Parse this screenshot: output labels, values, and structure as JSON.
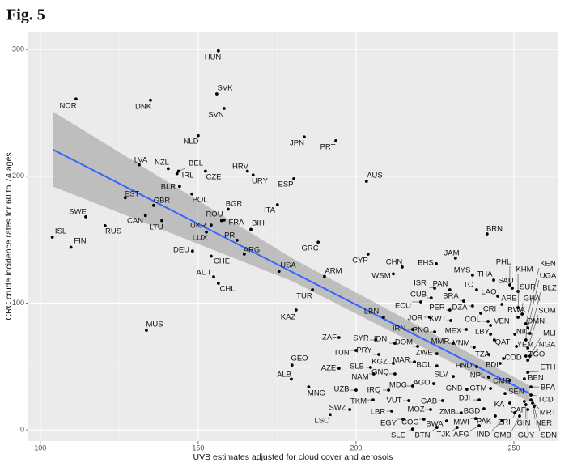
{
  "chart_data": {
    "type": "scatter",
    "title": "Fig. 5",
    "xlabel": "UVB estimates adjusted for cloud cover and aerosols",
    "ylabel": "CRC crude incidence rates for 60 to 74 ages",
    "xlim": [
      96.2,
      264.1
    ],
    "ylim": [
      -8.9,
      313.5
    ],
    "xticks": [
      100,
      150,
      200,
      250
    ],
    "yticks": [
      0,
      100,
      200,
      300
    ],
    "grid": true,
    "series": [
      {
        "color": "#000000",
        "labels": [
          "HUN",
          "SVK",
          "SVN",
          "NOR",
          "DNK",
          "NLD",
          "JPN",
          "PRT",
          "LVA",
          "NZL",
          "BEL",
          "IRL",
          "CZE",
          "HRV",
          "URY",
          "ESP",
          "AUS",
          "BLR",
          "EST",
          "POL",
          "GBR",
          "SWE",
          "CAN",
          "LTU",
          "BGR",
          "ITA",
          "ROU",
          "FRA",
          "UKR",
          "BIH",
          "RUS",
          "ISL",
          "FIN",
          "LUX",
          "PRI",
          "DEU",
          "ARG",
          "GRC",
          "CHE",
          "CYP",
          "USA",
          "ARM",
          "AUT",
          "CHL",
          "TUR",
          "BRN",
          "JAM",
          "MUS",
          "KAZ",
          "LBN",
          "CHN",
          "WSM",
          "BHS",
          "ZAF",
          "GEO",
          "ALB",
          "AZE",
          "MNG",
          "SWZ",
          "LSO",
          "ISR",
          "PAN",
          "CUB",
          "TTO",
          "MYS",
          "THA",
          "PHL",
          "KHM",
          "KEN",
          "SAU",
          "UGA",
          "BLZ",
          "SUR",
          "LAO",
          "BRA",
          "ARE",
          "GHA",
          "ECU",
          "PER",
          "DZA",
          "CRI",
          "RWA",
          "SOM",
          "JOR",
          "KWT",
          "COL",
          "VEN",
          "OMN",
          "IRN",
          "PNG",
          "MEX",
          "LBY",
          "NIC",
          "MLI",
          "QAT",
          "YEM",
          "NGA",
          "SYR",
          "IDN",
          "MMR",
          "VNM",
          "TGO",
          "DOM",
          "COD",
          "TUN",
          "PRY",
          "ZWE",
          "TZA",
          "BDI",
          "ETH",
          "SLB",
          "KGZ",
          "MAR",
          "BOL",
          "HND",
          "BEN",
          "NAM",
          "GNQ",
          "SLV",
          "NPL",
          "CMR",
          "BFA",
          "AGO",
          "UZB",
          "IRQ",
          "MDG",
          "GNB",
          "GTM",
          "SEN",
          "TCD",
          "DJI",
          "GAB",
          "VUT",
          "TKM",
          "LBR",
          "MOZ",
          "BGD",
          "KA",
          "CAF",
          "MRT",
          "ZMB",
          "EGY",
          "COG",
          "BWA",
          "MWI",
          "PAK",
          "ERI",
          "GIN",
          "NER",
          "SLE",
          "BTN",
          "TJK",
          "AFG",
          "IND",
          "GMB",
          "GUY",
          "SDN"
        ],
        "x": [
          156.4,
          155.9,
          158.2,
          111.3,
          134.9,
          150,
          183.6,
          193.6,
          131.3,
          140.5,
          143.8,
          143.3,
          152.3,
          165.6,
          167.4,
          180.3,
          203.3,
          144.1,
          126.9,
          148,
          135.9,
          114.4,
          133.3,
          138.5,
          159.5,
          175.1,
          157.4,
          158.2,
          154.1,
          166.7,
          120.5,
          103.8,
          109.7,
          152.6,
          162.3,
          148.2,
          164.6,
          188,
          154.1,
          203.8,
          175.6,
          190,
          154.9,
          156.4,
          186.2,
          241.5,
          231.5,
          133.6,
          181,
          208.7,
          214.6,
          211.8,
          225.4,
          194.6,
          179.7,
          179.5,
          194.6,
          185,
          198,
          191.8,
          224.9,
          229.7,
          223.8,
          238.2,
          236.9,
          243.6,
          248.7,
          251.3,
          253.8,
          249.5,
          254.4,
          255.1,
          251.3,
          244.9,
          234.1,
          246.2,
          252.6,
          220.5,
          229.7,
          236.9,
          239.5,
          251.3,
          254.4,
          223.3,
          230,
          241.8,
          242.6,
          253.8,
          217.9,
          224.9,
          234.9,
          242.6,
          250.3,
          255.1,
          243.8,
          250.8,
          254.4,
          206.2,
          212.3,
          230.8,
          237.4,
          253.8,
          219.5,
          246.7,
          200,
          207.2,
          225.6,
          242,
          245.6,
          254.4,
          204.6,
          211.8,
          218.5,
          225.6,
          238.2,
          253.3,
          205.6,
          212.3,
          230.8,
          242,
          248.7,
          255.4,
          224.6,
          200,
          210.3,
          217.9,
          235.1,
          242.6,
          247.2,
          255.4,
          239,
          227.4,
          216.7,
          205.4,
          211.3,
          223.6,
          240.5,
          248.7,
          253.3,
          255.4,
          233.3,
          214.9,
          221.5,
          228.7,
          237.9,
          244.1,
          250.3,
          253.8,
          255.9,
          217.9,
          225.6,
          232,
          239,
          246.2,
          251.8,
          254.4,
          256.4
        ],
        "values": [
          299,
          265,
          253.5,
          261,
          260,
          232,
          231,
          228,
          209,
          206,
          204,
          202,
          204,
          204,
          201,
          198,
          196,
          192,
          183,
          186,
          177,
          168,
          169,
          165,
          174,
          177.5,
          165,
          165.5,
          161.5,
          158,
          161,
          152,
          144,
          156,
          149.5,
          141,
          138.6,
          148,
          137,
          138.6,
          125,
          121,
          120.7,
          115.6,
          110.5,
          154.5,
          135.4,
          78.5,
          94.5,
          88.8,
          128.4,
          123,
          131,
          72.8,
          51,
          40,
          48.5,
          33.8,
          16,
          12,
          111.8,
          110.5,
          104.1,
          110.5,
          122,
          118.1,
          114.3,
          109.2,
          83.7,
          111.8,
          80.5,
          76,
          96.4,
          105.4,
          101.5,
          99,
          91.3,
          100.9,
          94.5,
          97.7,
          92,
          88.8,
          64.5,
          88.8,
          86.2,
          85.6,
          82.4,
          70.9,
          79.2,
          77.3,
          79.2,
          75.4,
          75.4,
          58.1,
          70.9,
          65.8,
          54.9,
          70.9,
          68.3,
          68.3,
          65.1,
          58.1,
          65.8,
          56.2,
          62.6,
          59.4,
          60,
          59.4,
          52.4,
          45.3,
          49.2,
          52.4,
          53.6,
          50.4,
          49.8,
          40.2,
          44.1,
          44.1,
          42.1,
          41.5,
          39,
          33.8,
          36.4,
          31.3,
          31.3,
          34.5,
          31.9,
          32.6,
          28.7,
          27.5,
          23.6,
          23,
          23,
          23.6,
          14.7,
          16,
          16.6,
          21.1,
          22.4,
          23.6,
          13.4,
          8.3,
          8.3,
          7,
          8.9,
          10.9,
          13.4,
          19.8,
          21.1,
          0.6,
          1.9,
          1.9,
          3.2,
          7,
          10.9,
          16,
          18.5
        ]
      }
    ],
    "fit": {
      "x": [
        104,
        255
      ],
      "values": [
        221,
        28.7
      ],
      "color": "#3366ff"
    },
    "band": {
      "x": [
        104,
        180,
        255
      ],
      "upper": [
        251,
        135,
        35
      ],
      "lower": [
        192,
        117,
        22
      ],
      "color": "#999999"
    }
  }
}
